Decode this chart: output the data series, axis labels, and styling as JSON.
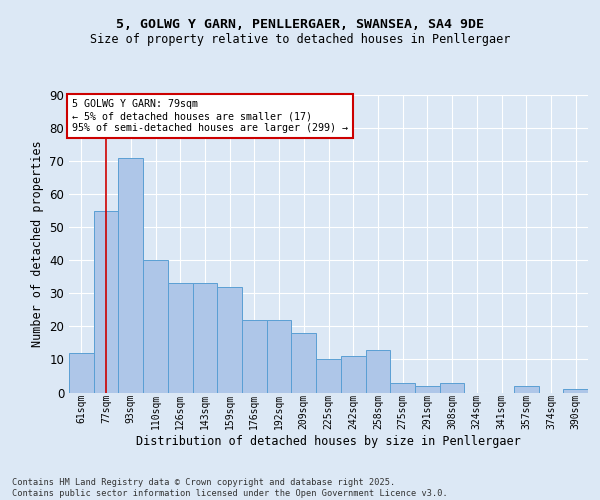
{
  "title1": "5, GOLWG Y GARN, PENLLERGAER, SWANSEA, SA4 9DE",
  "title2": "Size of property relative to detached houses in Penllergaer",
  "xlabel": "Distribution of detached houses by size in Penllergaer",
  "ylabel": "Number of detached properties",
  "categories": [
    "61sqm",
    "77sqm",
    "93sqm",
    "110sqm",
    "126sqm",
    "143sqm",
    "159sqm",
    "176sqm",
    "192sqm",
    "209sqm",
    "225sqm",
    "242sqm",
    "258sqm",
    "275sqm",
    "291sqm",
    "308sqm",
    "324sqm",
    "341sqm",
    "357sqm",
    "374sqm",
    "390sqm"
  ],
  "values": [
    12,
    55,
    71,
    40,
    33,
    33,
    32,
    22,
    22,
    18,
    10,
    11,
    13,
    3,
    2,
    3,
    0,
    0,
    2,
    0,
    1
  ],
  "bar_color": "#aec6e8",
  "bar_edge_color": "#5a9fd4",
  "vline_x": 1,
  "vline_color": "#cc0000",
  "annotation_text": "5 GOLWG Y GARN: 79sqm\n← 5% of detached houses are smaller (17)\n95% of semi-detached houses are larger (299) →",
  "annotation_box_color": "#ffffff",
  "annotation_box_edge": "#cc0000",
  "ylim": [
    0,
    90
  ],
  "yticks": [
    0,
    10,
    20,
    30,
    40,
    50,
    60,
    70,
    80,
    90
  ],
  "footer": "Contains HM Land Registry data © Crown copyright and database right 2025.\nContains public sector information licensed under the Open Government Licence v3.0.",
  "bg_color": "#dce8f5",
  "plot_bg_color": "#dce8f5",
  "grid_color": "#ffffff"
}
